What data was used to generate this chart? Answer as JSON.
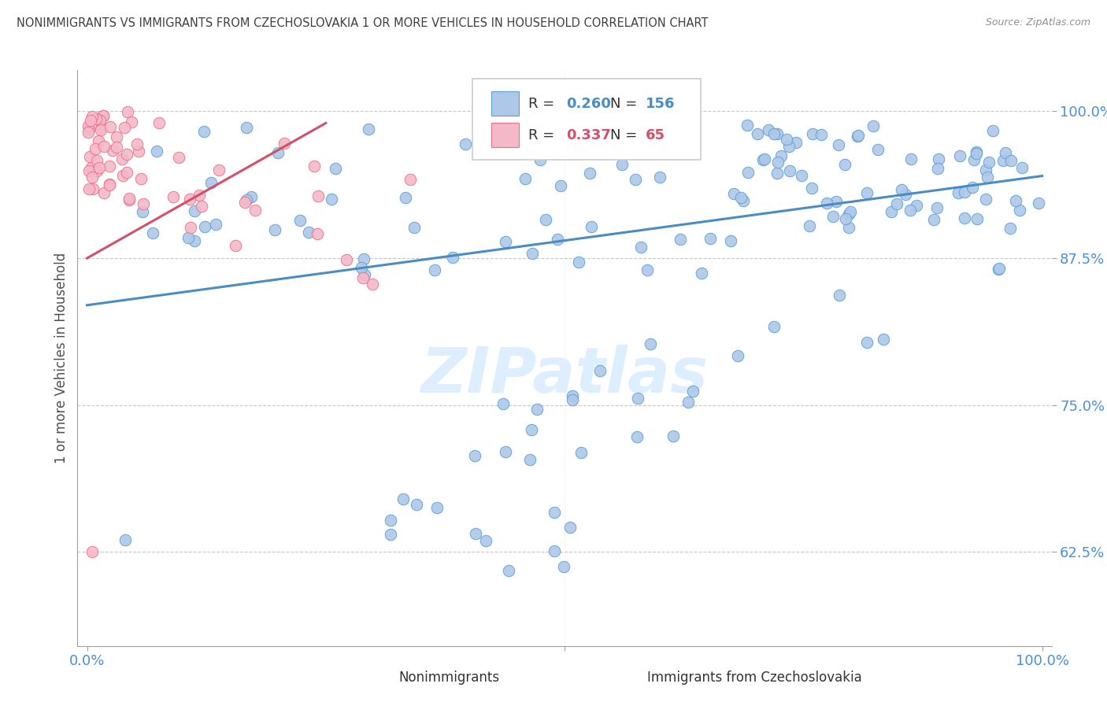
{
  "title": "NONIMMIGRANTS VS IMMIGRANTS FROM CZECHOSLOVAKIA 1 OR MORE VEHICLES IN HOUSEHOLD CORRELATION CHART",
  "source": "Source: ZipAtlas.com",
  "ylabel": "1 or more Vehicles in Household",
  "yticks": [
    "62.5%",
    "75.0%",
    "87.5%",
    "100.0%"
  ],
  "ytick_vals": [
    0.625,
    0.75,
    0.875,
    1.0
  ],
  "legend_blue_R": "0.260",
  "legend_blue_N": "156",
  "legend_pink_R": "0.337",
  "legend_pink_N": "65",
  "blue_color": "#adc8e8",
  "blue_edge_color": "#5a9fd4",
  "blue_line_color": "#4a8cc4",
  "pink_color": "#f5b8c8",
  "pink_edge_color": "#e8708a",
  "pink_line_color": "#d4506a",
  "title_color": "#404040",
  "source_color": "#909090",
  "axis_color": "#4a90d9",
  "grid_color": "#c8c8c8",
  "watermark_color": "#ddeeff"
}
